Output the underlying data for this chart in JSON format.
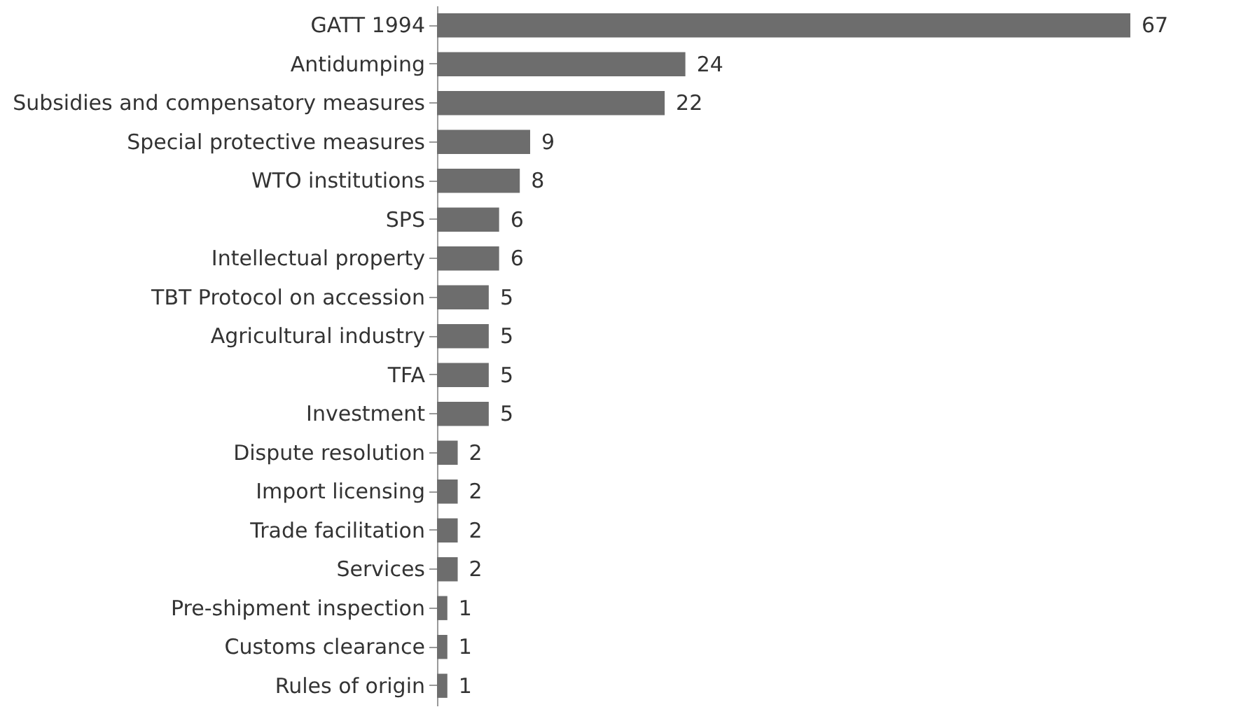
{
  "chart_data": {
    "type": "bar",
    "orientation": "horizontal",
    "data_labels": true,
    "categories": [
      "GATT 1994",
      "Antidumping",
      "Subsidies and compensatory measures",
      "Special protective measures",
      "WTO institutions",
      "SPS",
      "Intellectual property",
      "TBT  Protocol on accession",
      "Agricultural industry",
      "TFA",
      "Investment",
      "Dispute resolution",
      "Import licensing",
      "Trade facilitation",
      "Services",
      "Pre-shipment inspection",
      "Customs clearance",
      "Rules of origin"
    ],
    "values": [
      67,
      24,
      22,
      9,
      8,
      6,
      6,
      5,
      5,
      5,
      5,
      2,
      2,
      2,
      2,
      1,
      1,
      1
    ],
    "color": "#6d6d6d"
  }
}
